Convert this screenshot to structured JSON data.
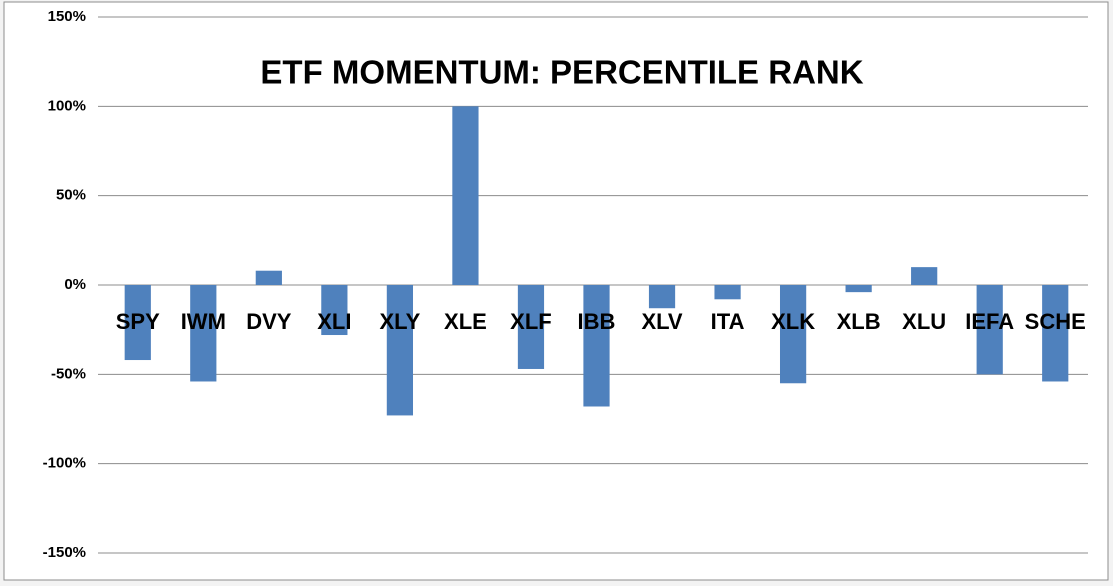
{
  "chart_data": {
    "type": "bar",
    "title": "ETF MOMENTUM: PERCENTILE RANK",
    "categories": [
      "SPY",
      "IWM",
      "DVY",
      "XLI",
      "XLY",
      "XLE",
      "XLF",
      "IBB",
      "XLV",
      "ITA",
      "XLK",
      "XLB",
      "XLU",
      "IEFA",
      "SCHE"
    ],
    "values": [
      -42,
      -54,
      8,
      -28,
      -73,
      100,
      -47,
      -68,
      -13,
      -8,
      -55,
      -4,
      10,
      -50,
      -54
    ],
    "color": "#4f81bd",
    "ylim": [
      -150,
      150
    ],
    "yticks": [
      {
        "value": -150,
        "label": "-150%"
      },
      {
        "value": -100,
        "label": "-100%"
      },
      {
        "value": -50,
        "label": "-50%"
      },
      {
        "value": 0,
        "label": "0%"
      },
      {
        "value": 50,
        "label": "50%"
      },
      {
        "value": 100,
        "label": "100%"
      },
      {
        "value": 150,
        "label": "150%"
      }
    ],
    "grid": true
  }
}
